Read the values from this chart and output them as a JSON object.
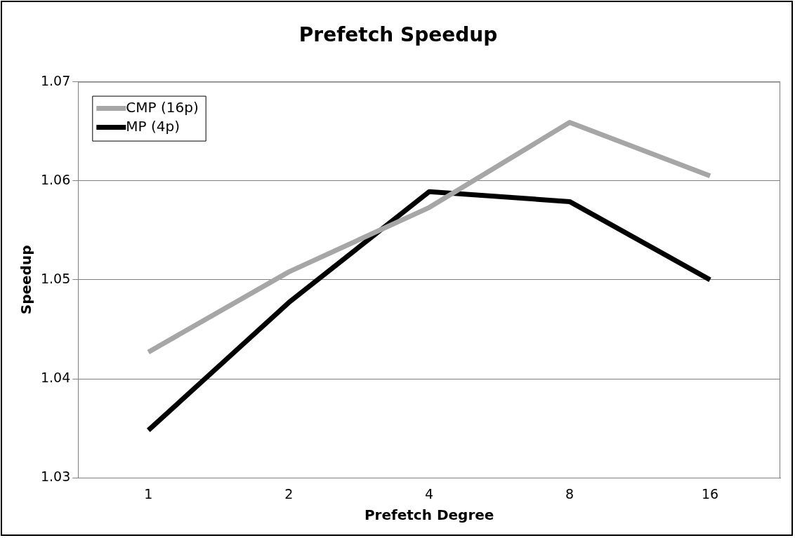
{
  "chart_data": {
    "type": "line",
    "title": "Prefetch Speedup",
    "xlabel": "Prefetch Degree",
    "ylabel": "Speedup",
    "categories": [
      "1",
      "2",
      "4",
      "8",
      "16"
    ],
    "series": [
      {
        "name": "CMP (16p)",
        "color": "#a6a6a6",
        "values": [
          1.0427,
          1.0508,
          1.0573,
          1.0659,
          1.0605
        ]
      },
      {
        "name": "MP (4p)",
        "color": "#000000",
        "values": [
          1.0348,
          1.0477,
          1.0589,
          1.0579,
          1.05
        ]
      }
    ],
    "ylim": [
      1.03,
      1.07
    ],
    "yticks": [
      1.03,
      1.04,
      1.05,
      1.06,
      1.07
    ],
    "grid": "y",
    "legend": "top left",
    "marker": "none",
    "line_style": "solid"
  }
}
